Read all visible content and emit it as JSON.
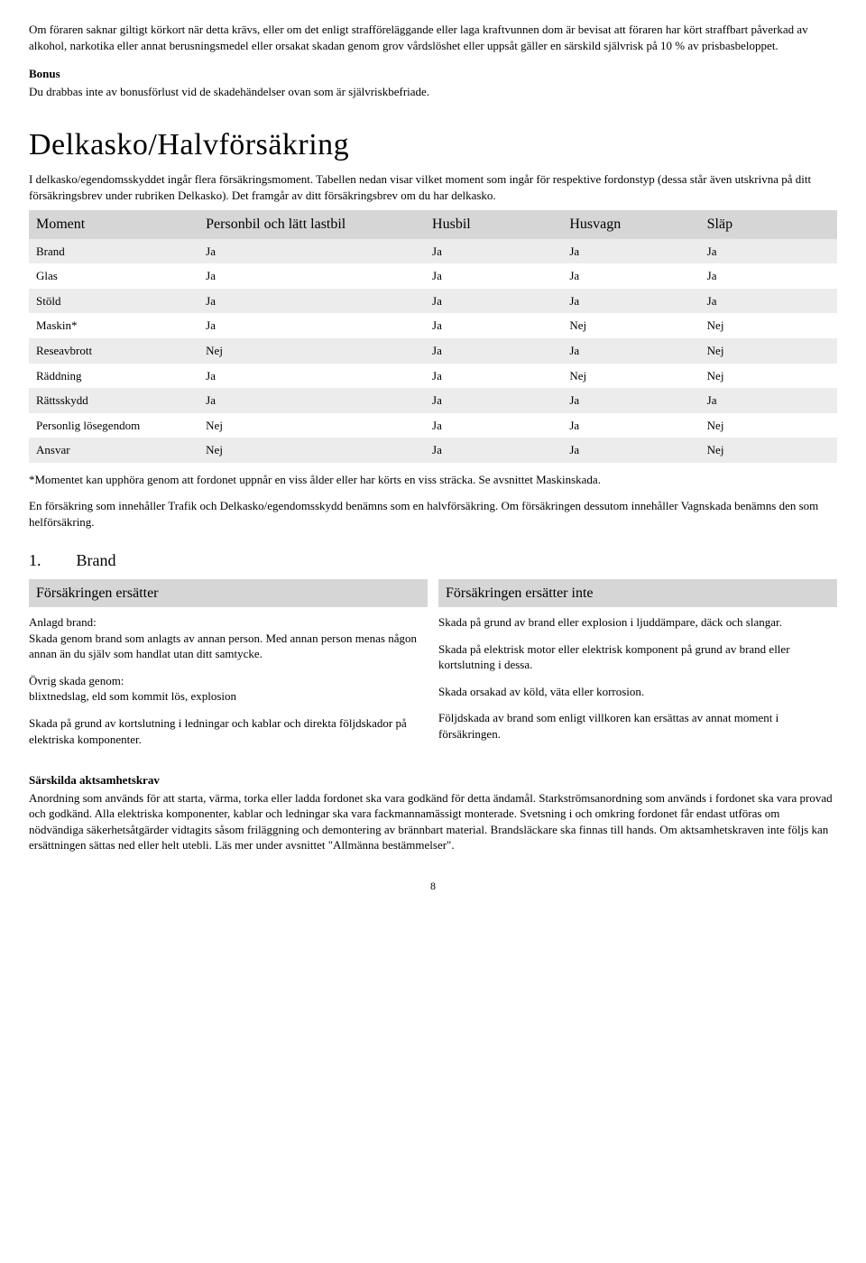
{
  "top": {
    "p1": "Om föraren saknar giltigt körkort när detta krävs, eller om det enligt strafföreläggande eller laga kraftvunnen dom är bevisat att föraren har kört straffbart påverkad av alkohol, narkotika eller annat berusningsmedel eller orsakat skadan genom grov vårdslöshet eller uppsåt gäller en särskild självrisk på 10 % av prisbasbeloppet.",
    "bonus_h": "Bonus",
    "bonus_p": "Du drabbas inte av bonusförlust vid de skadehändelser ovan som är självriskbefriade."
  },
  "main_heading": "Delkasko/Halvförsäkring",
  "main_intro": "I delkasko/egendomsskyddet ingår flera försäkringsmoment. Tabellen nedan visar vilket moment som ingår för respektive fordonstyp (dessa står även utskrivna på ditt försäkringsbrev under rubriken Delkasko). Det framgår av ditt försäkringsbrev om du har delkasko.",
  "table": {
    "headers": [
      "Moment",
      "Personbil och lätt lastbil",
      "Husbil",
      "Husvagn",
      "Släp"
    ],
    "rows": [
      [
        "Brand",
        "Ja",
        "Ja",
        "Ja",
        "Ja"
      ],
      [
        "Glas",
        "Ja",
        "Ja",
        "Ja",
        "Ja"
      ],
      [
        "Stöld",
        "Ja",
        "Ja",
        "Ja",
        "Ja"
      ],
      [
        "Maskin*",
        "Ja",
        "Ja",
        "Nej",
        "Nej"
      ],
      [
        "Reseavbrott",
        "Nej",
        "Ja",
        "Ja",
        "Nej"
      ],
      [
        "Räddning",
        "Ja",
        "Ja",
        "Nej",
        "Nej"
      ],
      [
        "Rättsskydd",
        "Ja",
        "Ja",
        "Ja",
        "Ja"
      ],
      [
        "Personlig lösegendom",
        "Nej",
        "Ja",
        "Ja",
        "Nej"
      ],
      [
        "Ansvar",
        "Nej",
        "Ja",
        "Ja",
        "Nej"
      ]
    ]
  },
  "footnote1": "*Momentet kan upphöra genom att fordonet uppnår en viss ålder eller har körts en viss sträcka. Se avsnittet Maskinskada.",
  "footnote2": "En försäkring som innehåller Trafik och Delkasko/egendomsskydd benämns som en halvförsäkring. Om försäkringen dessutom innehåller Vagnskada benämns den som helförsäkring.",
  "section1": {
    "num": "1.",
    "title": "Brand",
    "left_head": "Försäkringen ersätter",
    "right_head": "Försäkringen ersätter inte",
    "left": {
      "p1a": "Anlagd brand:",
      "p1b": "Skada genom brand som anlagts av annan person. Med annan person menas någon annan än du själv som handlat utan ditt samtycke.",
      "p2a": "Övrig skada genom:",
      "p2b": "blixtnedslag, eld som kommit lös, explosion",
      "p3": "Skada på grund av kortslutning i ledningar och kablar och direkta följdskador på elektriska komponenter."
    },
    "right": {
      "p1": "Skada på grund av brand eller explosion i ljuddämpare, däck och slangar.",
      "p2": "Skada på elektrisk motor eller elektrisk komponent på grund av brand eller kortslutning i dessa.",
      "p3": "Skada orsakad av köld, väta eller korrosion.",
      "p4": "Följdskada av brand som enligt villkoren kan ersättas av annat moment i försäkringen."
    }
  },
  "aktsam": {
    "h": "Särskilda aktsamhetskrav",
    "p": "Anordning som används för att starta, värma, torka eller ladda fordonet ska vara godkänd för detta ändamål. Starkströmsanordning som används i fordonet ska vara provad och godkänd. Alla elektriska komponenter, kablar och ledningar ska vara fackmannamässigt monterade.  Svetsning i och omkring fordonet får endast utföras om nödvändiga säkerhetsåtgärder vidtagits såsom friläggning och demontering av brännbart material. Brandsläckare ska finnas till hands. Om aktsamhetskraven inte följs kan ersättningen sättas ned eller helt utebli. Läs mer under avsnittet \"Allmänna bestämmelser\"."
  },
  "pagenum": "8"
}
